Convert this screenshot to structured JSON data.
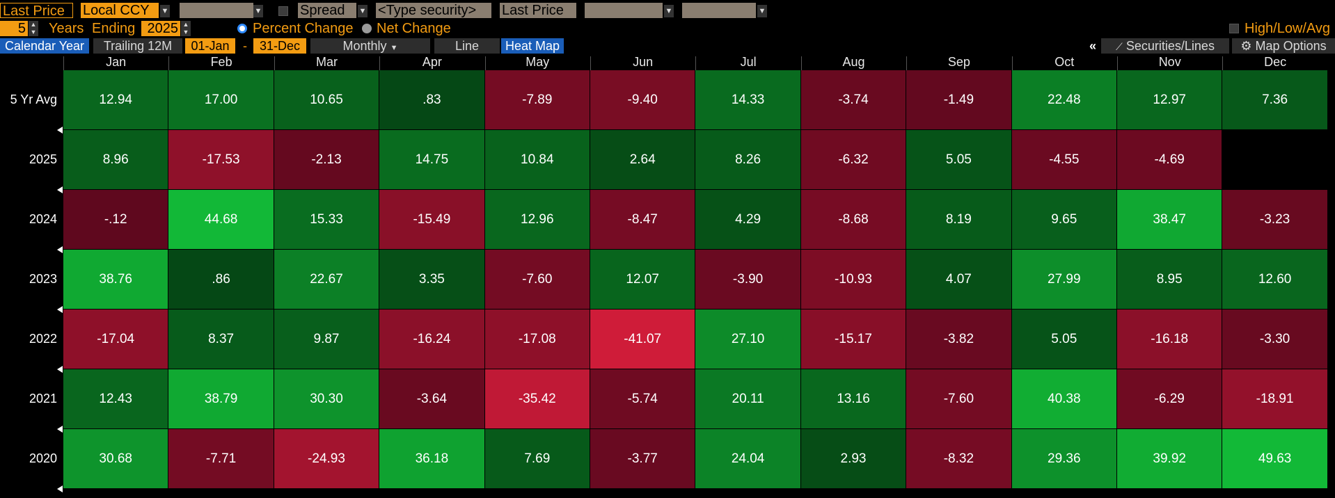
{
  "toolbar": {
    "last_price": "Last Price",
    "currency": "Local CCY",
    "spread": "Spread",
    "security_placeholder": "<Type security>",
    "price_field": "Last Price",
    "years_value": "5",
    "years_label": "Years",
    "ending_label": "Ending",
    "ending_year": "2025",
    "percent_change": "Percent Change",
    "net_change": "Net Change",
    "high_low_avg": "High/Low/Avg"
  },
  "tabs": {
    "calendar_year": "Calendar Year",
    "trailing_12m": "Trailing 12M",
    "date_from": "01-Jan",
    "date_sep": "-",
    "date_to": "31-Dec",
    "period": "Monthly",
    "line": "Line",
    "heat_map": "Heat Map",
    "collapse": "«",
    "securities_lines": "Securities/Lines",
    "map_options": "Map Options"
  },
  "months": [
    "Jan",
    "Feb",
    "Mar",
    "Apr",
    "May",
    "Jun",
    "Jul",
    "Aug",
    "Sep",
    "Oct",
    "Nov",
    "Dec"
  ],
  "rows": [
    {
      "label": "5 Yr Avg",
      "values": [
        "12.94",
        "17.00",
        "10.65",
        ".83",
        "-7.89",
        "-9.40",
        "14.33",
        "-3.74",
        "-1.49",
        "22.48",
        "12.97",
        "7.36"
      ]
    },
    {
      "label": "2025",
      "values": [
        "8.96",
        "-17.53",
        "-2.13",
        "14.75",
        "10.84",
        "2.64",
        "8.26",
        "-6.32",
        "5.05",
        "-4.55",
        "-4.69",
        ""
      ]
    },
    {
      "label": "2024",
      "values": [
        "-.12",
        "44.68",
        "15.33",
        "-15.49",
        "12.96",
        "-8.47",
        "4.29",
        "-8.68",
        "8.19",
        "9.65",
        "38.47",
        "-3.23"
      ]
    },
    {
      "label": "2023",
      "values": [
        "38.76",
        ".86",
        "22.67",
        "3.35",
        "-7.60",
        "12.07",
        "-3.90",
        "-10.93",
        "4.07",
        "27.99",
        "8.95",
        "12.60"
      ]
    },
    {
      "label": "2022",
      "values": [
        "-17.04",
        "8.37",
        "9.87",
        "-16.24",
        "-17.08",
        "-41.07",
        "27.10",
        "-15.17",
        "-3.82",
        "5.05",
        "-16.18",
        "-3.30"
      ]
    },
    {
      "label": "2021",
      "values": [
        "12.43",
        "38.79",
        "30.30",
        "-3.64",
        "-35.42",
        "-5.74",
        "20.11",
        "13.16",
        "-7.60",
        "40.38",
        "-6.29",
        "-18.91"
      ]
    },
    {
      "label": "2020",
      "values": [
        "30.68",
        "-7.71",
        "-24.93",
        "36.18",
        "7.69",
        "-3.77",
        "24.04",
        "2.93",
        "-8.32",
        "29.36",
        "39.92",
        "49.63"
      ]
    }
  ],
  "colors": {
    "accent_orange": "#f39c12",
    "tab_blue": "#1a5db8",
    "positive_green": "#12b535",
    "negative_red": "#d81e3c"
  }
}
